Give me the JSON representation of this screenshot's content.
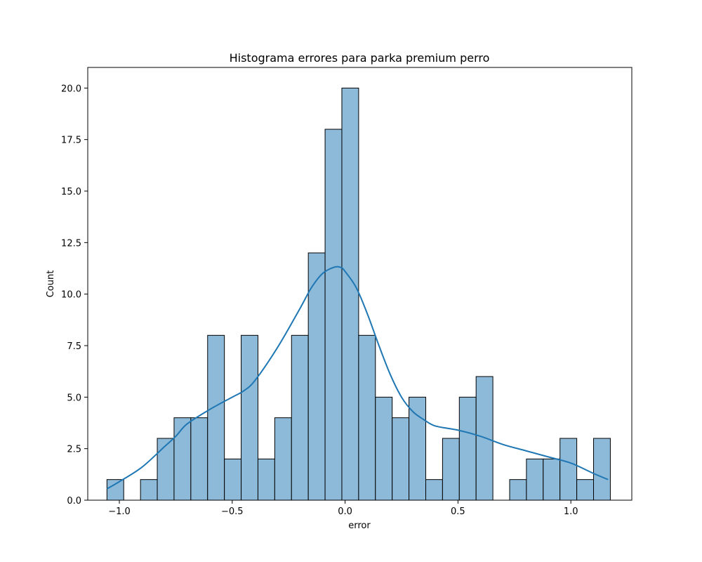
{
  "chart_data": {
    "type": "bar",
    "title": "Histograma errores para parka premium perro",
    "xlabel": "error",
    "ylabel": "Count",
    "xlim": [
      -1.14,
      1.27
    ],
    "ylim": [
      0,
      21
    ],
    "bin_start": -1.055,
    "bin_width": 0.07433,
    "counts": [
      1,
      0,
      1,
      3,
      4,
      4,
      8,
      2,
      8,
      2,
      4,
      8,
      12,
      18,
      20,
      8,
      5,
      4,
      5,
      1,
      3,
      5,
      6,
      0,
      1,
      2,
      2,
      3,
      1,
      3
    ],
    "x_ticks": [
      {
        "value": -1.0,
        "label": "−1.0"
      },
      {
        "value": -0.5,
        "label": "−0.5"
      },
      {
        "value": 0.0,
        "label": "0.0"
      },
      {
        "value": 0.5,
        "label": "0.5"
      },
      {
        "value": 1.0,
        "label": "1.0"
      }
    ],
    "y_ticks": [
      {
        "value": 0,
        "label": "0.0"
      },
      {
        "value": 2.5,
        "label": "2.5"
      },
      {
        "value": 5,
        "label": "5.0"
      },
      {
        "value": 7.5,
        "label": "7.5"
      },
      {
        "value": 10,
        "label": "10.0"
      },
      {
        "value": 12.5,
        "label": "12.5"
      },
      {
        "value": 15,
        "label": "15.0"
      },
      {
        "value": 17.5,
        "label": "17.5"
      },
      {
        "value": 20,
        "label": "20.0"
      }
    ],
    "kde": {
      "x": [
        -1.055,
        -1.0,
        -0.9,
        -0.8,
        -0.75,
        -0.7,
        -0.6,
        -0.5,
        -0.45,
        -0.4,
        -0.3,
        -0.2,
        -0.15,
        -0.1,
        -0.05,
        -0.02,
        0.0,
        0.05,
        0.1,
        0.15,
        0.2,
        0.25,
        0.3,
        0.35,
        0.4,
        0.5,
        0.6,
        0.7,
        0.8,
        0.9,
        1.0,
        1.1,
        1.165
      ],
      "y": [
        0.55,
        0.9,
        1.6,
        2.6,
        3.1,
        3.7,
        4.4,
        5.0,
        5.3,
        5.8,
        7.4,
        9.3,
        10.3,
        11.0,
        11.3,
        11.3,
        11.1,
        10.3,
        9.0,
        7.5,
        6.1,
        5.0,
        4.3,
        3.9,
        3.6,
        3.4,
        3.1,
        2.7,
        2.4,
        2.1,
        1.8,
        1.3,
        1.0
      ]
    },
    "bar_fill": "#8ebad9",
    "bar_edge": "#000000",
    "kde_color": "#1f77b4",
    "grid": false,
    "legend": "none"
  }
}
